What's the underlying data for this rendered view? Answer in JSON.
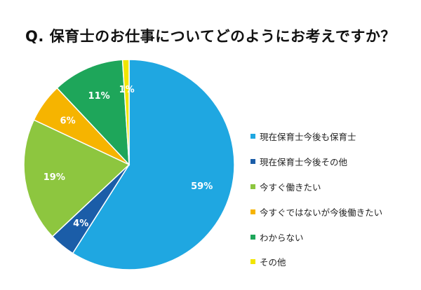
{
  "title": "Q. 保育士のお仕事についてどのようにお考えですか？",
  "chart_data": {
    "type": "pie",
    "start_angle_deg": 0,
    "direction": "clockwise",
    "legend_position": "right",
    "slices": [
      {
        "label": "現在保育士今後も保育士",
        "value": 59,
        "display": "59%",
        "color": "#1FA7E1"
      },
      {
        "label": "現在保育士今後その他",
        "value": 4,
        "display": "4%",
        "color": "#1B5DA8"
      },
      {
        "label": "今すぐ働きたい",
        "value": 19,
        "display": "19%",
        "color": "#8DC63F"
      },
      {
        "label": "今すぐではないが今後働きたい",
        "value": 6,
        "display": "6%",
        "color": "#F6B400"
      },
      {
        "label": "わからない",
        "value": 11,
        "display": "11%",
        "color": "#1EA65A"
      },
      {
        "label": "その他",
        "value": 1,
        "display": "1%",
        "color": "#F2E500"
      }
    ]
  }
}
